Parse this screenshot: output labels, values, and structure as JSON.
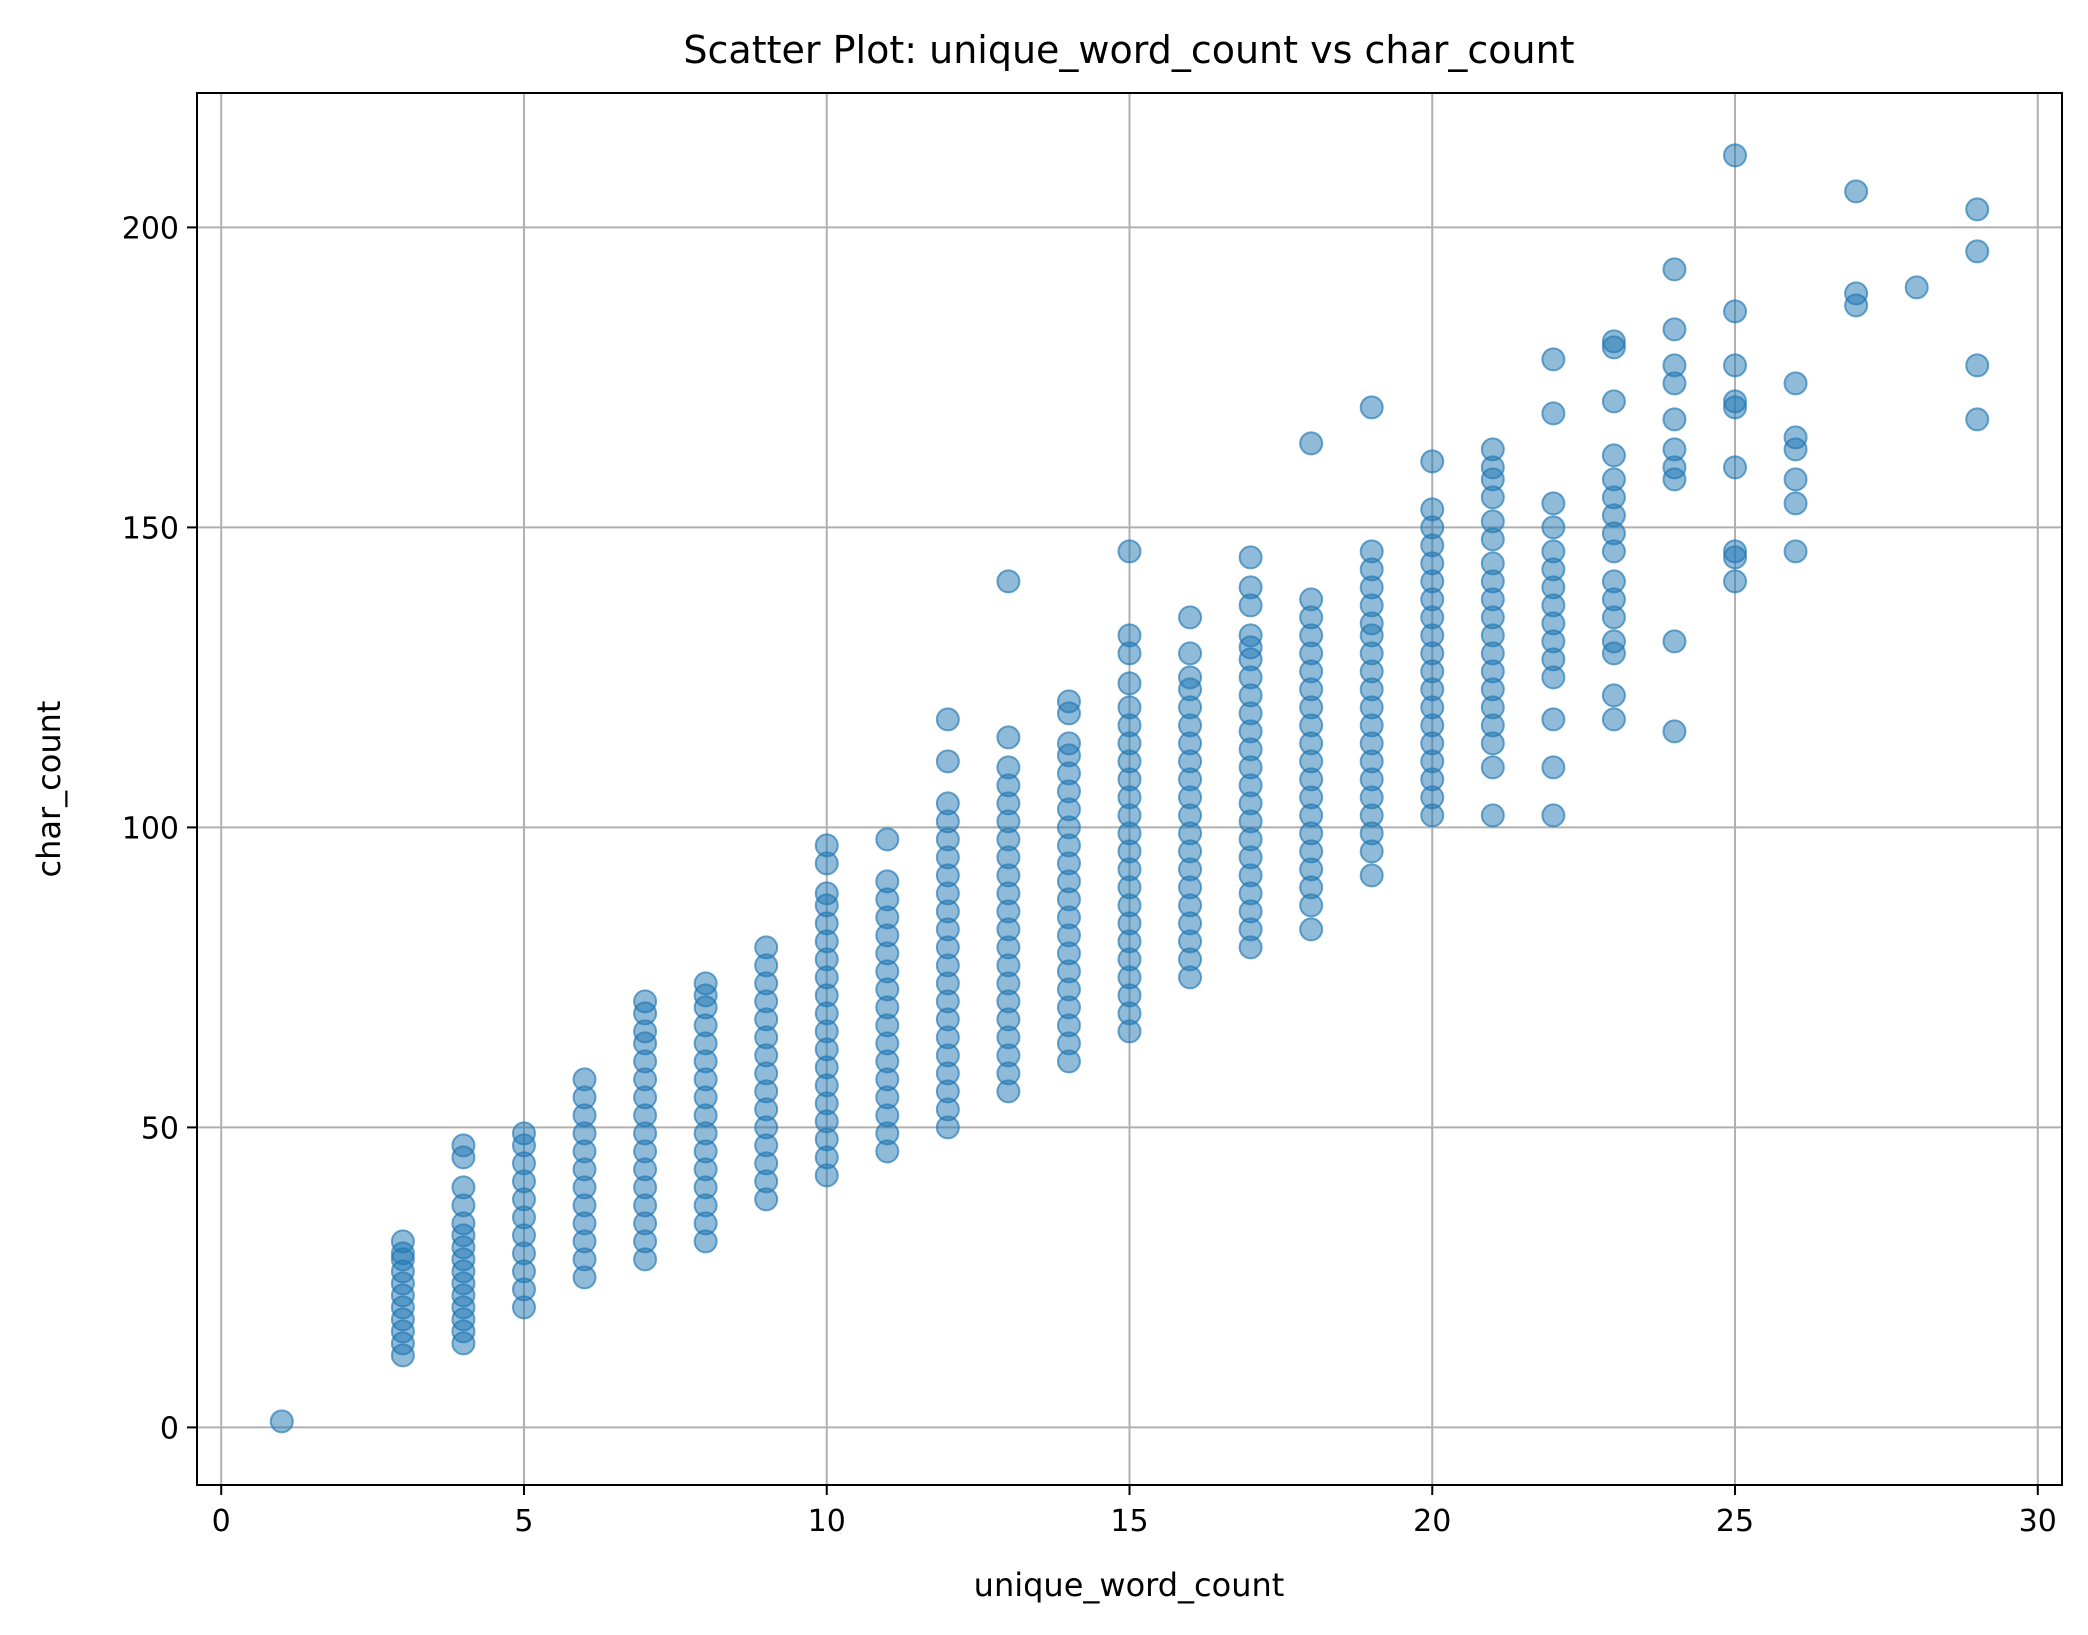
{
  "chart_data": {
    "type": "scatter",
    "title": "Scatter Plot: unique_word_count vs char_count",
    "xlabel": "unique_word_count",
    "ylabel": "char_count",
    "xlim": [
      -0.4,
      30.4
    ],
    "ylim": [
      -9.6,
      222.4
    ],
    "xticks": [
      0,
      5,
      10,
      15,
      20,
      25,
      30
    ],
    "yticks": [
      0,
      50,
      100,
      150,
      200
    ],
    "grid": true,
    "marker_color": "#1f77b4",
    "marker_alpha": 0.5,
    "columns": [
      {
        "x": 1,
        "y": [
          1
        ]
      },
      {
        "x": 3,
        "y": [
          12,
          14,
          16,
          18,
          20,
          22,
          24,
          26,
          28,
          29,
          31
        ]
      },
      {
        "x": 4,
        "y": [
          14,
          16,
          18,
          20,
          22,
          24,
          26,
          28,
          30,
          32,
          34,
          37,
          40,
          45,
          47
        ]
      },
      {
        "x": 5,
        "y": [
          20,
          23,
          26,
          29,
          32,
          35,
          38,
          41,
          44,
          47,
          49
        ]
      },
      {
        "x": 6,
        "y": [
          25,
          28,
          31,
          34,
          37,
          40,
          43,
          46,
          49,
          52,
          55,
          58
        ]
      },
      {
        "x": 7,
        "y": [
          28,
          31,
          34,
          37,
          40,
          43,
          46,
          49,
          52,
          55,
          58,
          61,
          64,
          66,
          69,
          71
        ]
      },
      {
        "x": 8,
        "y": [
          31,
          34,
          37,
          40,
          43,
          46,
          49,
          52,
          55,
          58,
          61,
          64,
          67,
          70,
          72,
          74
        ]
      },
      {
        "x": 9,
        "y": [
          38,
          41,
          44,
          47,
          50,
          53,
          56,
          59,
          62,
          65,
          68,
          71,
          74,
          77,
          80
        ]
      },
      {
        "x": 10,
        "y": [
          42,
          45,
          48,
          51,
          54,
          57,
          60,
          63,
          66,
          69,
          72,
          75,
          78,
          81,
          84,
          87,
          89,
          94,
          97
        ]
      },
      {
        "x": 11,
        "y": [
          46,
          49,
          52,
          55,
          58,
          61,
          64,
          67,
          70,
          73,
          76,
          79,
          82,
          85,
          88,
          91,
          98
        ]
      },
      {
        "x": 12,
        "y": [
          50,
          53,
          56,
          59,
          62,
          65,
          68,
          71,
          74,
          77,
          80,
          83,
          86,
          89,
          92,
          95,
          98,
          101,
          104,
          111,
          118
        ]
      },
      {
        "x": 13,
        "y": [
          56,
          59,
          62,
          65,
          68,
          71,
          74,
          77,
          80,
          83,
          86,
          89,
          92,
          95,
          98,
          101,
          104,
          107,
          110,
          115,
          141
        ]
      },
      {
        "x": 14,
        "y": [
          61,
          64,
          67,
          70,
          73,
          76,
          79,
          82,
          85,
          88,
          91,
          94,
          97,
          100,
          103,
          106,
          109,
          112,
          114,
          119,
          121
        ]
      },
      {
        "x": 15,
        "y": [
          66,
          69,
          72,
          75,
          78,
          81,
          84,
          87,
          90,
          93,
          96,
          99,
          102,
          105,
          108,
          111,
          114,
          117,
          120,
          124,
          129,
          132,
          146
        ]
      },
      {
        "x": 16,
        "y": [
          75,
          78,
          81,
          84,
          87,
          90,
          93,
          96,
          99,
          102,
          105,
          108,
          111,
          114,
          117,
          120,
          123,
          125,
          129,
          135
        ]
      },
      {
        "x": 17,
        "y": [
          80,
          83,
          86,
          89,
          92,
          95,
          98,
          101,
          104,
          107,
          110,
          113,
          116,
          119,
          122,
          125,
          128,
          130,
          132,
          137,
          140,
          145
        ]
      },
      {
        "x": 18,
        "y": [
          83,
          87,
          90,
          93,
          96,
          99,
          102,
          105,
          108,
          111,
          114,
          117,
          120,
          123,
          126,
          129,
          132,
          135,
          138,
          164
        ]
      },
      {
        "x": 19,
        "y": [
          92,
          96,
          99,
          102,
          105,
          108,
          111,
          114,
          117,
          120,
          123,
          126,
          129,
          132,
          134,
          137,
          140,
          143,
          146,
          170
        ]
      },
      {
        "x": 20,
        "y": [
          102,
          105,
          108,
          111,
          114,
          117,
          120,
          123,
          126,
          129,
          132,
          135,
          138,
          141,
          144,
          147,
          150,
          153,
          161
        ]
      },
      {
        "x": 21,
        "y": [
          102,
          110,
          114,
          117,
          120,
          123,
          126,
          129,
          132,
          135,
          138,
          141,
          144,
          148,
          151,
          155,
          158,
          160,
          163
        ]
      },
      {
        "x": 22,
        "y": [
          102,
          110,
          118,
          125,
          128,
          131,
          134,
          137,
          140,
          143,
          146,
          150,
          154,
          169,
          178
        ]
      },
      {
        "x": 23,
        "y": [
          118,
          122,
          129,
          131,
          135,
          138,
          141,
          146,
          149,
          152,
          155,
          158,
          162,
          171,
          180,
          181
        ]
      },
      {
        "x": 24,
        "y": [
          116,
          131,
          158,
          160,
          163,
          168,
          174,
          177,
          183,
          193
        ]
      },
      {
        "x": 25,
        "y": [
          141,
          145,
          146,
          160,
          170,
          171,
          177,
          186,
          212
        ]
      },
      {
        "x": 26,
        "y": [
          146,
          154,
          158,
          163,
          165,
          174
        ]
      },
      {
        "x": 27,
        "y": [
          187,
          189,
          206
        ]
      },
      {
        "x": 28,
        "y": [
          190
        ]
      },
      {
        "x": 29,
        "y": [
          168,
          177,
          196,
          203
        ]
      }
    ]
  }
}
